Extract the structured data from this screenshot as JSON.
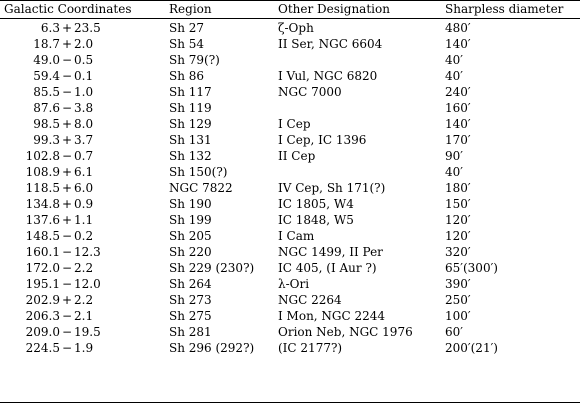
{
  "headers": {
    "coord": "Galactic Coordinates",
    "region": "Region",
    "other": "Other Designation",
    "diameter": "Sharpless diameter"
  },
  "rows": [
    {
      "l": "6.3",
      "op": "+",
      "b": "23.5",
      "region": "Sh 27",
      "other": "ζ-Oph",
      "diameter": "480′"
    },
    {
      "l": "18.7",
      "op": "+",
      "b": "2.0",
      "region": "Sh 54",
      "other": "II Ser, NGC 6604",
      "diameter": "140′"
    },
    {
      "l": "49.0",
      "op": "−",
      "b": "0.5",
      "region": "Sh 79(?)",
      "other": "",
      "diameter": "40′"
    },
    {
      "l": "59.4",
      "op": "−",
      "b": "0.1",
      "region": "Sh 86",
      "other": "I Vul, NGC 6820",
      "diameter": "40′"
    },
    {
      "l": "85.5",
      "op": "−",
      "b": "1.0",
      "region": "Sh 117",
      "other": "NGC 7000",
      "diameter": "240′"
    },
    {
      "l": "87.6",
      "op": "−",
      "b": "3.8",
      "region": "Sh 119",
      "other": "",
      "diameter": "160′"
    },
    {
      "l": "98.5",
      "op": "+",
      "b": "8.0",
      "region": "Sh 129",
      "other": "I Cep",
      "diameter": "140′"
    },
    {
      "l": "99.3",
      "op": "+",
      "b": "3.7",
      "region": "Sh 131",
      "other": "I Cep, IC 1396",
      "diameter": "170′"
    },
    {
      "l": "102.8",
      "op": "−",
      "b": "0.7",
      "region": "Sh 132",
      "other": "II Cep",
      "diameter": "90′"
    },
    {
      "l": "108.9",
      "op": "+",
      "b": "6.1",
      "region": "Sh 150(?)",
      "other": "",
      "diameter": "40′"
    },
    {
      "l": "118.5",
      "op": "+",
      "b": "6.0",
      "region": "NGC 7822",
      "other": "IV Cep, Sh 171(?)",
      "diameter": "180′"
    },
    {
      "l": "134.8",
      "op": "+",
      "b": "0.9",
      "region": "Sh 190",
      "other": "IC 1805, W4",
      "diameter": "150′"
    },
    {
      "l": "137.6",
      "op": "+",
      "b": "1.1",
      "region": "Sh 199",
      "other": "IC 1848, W5",
      "diameter": "120′"
    },
    {
      "l": "148.5",
      "op": "−",
      "b": "0.2",
      "region": "Sh 205",
      "other": "I Cam",
      "diameter": "120′"
    },
    {
      "l": "160.1",
      "op": "−",
      "b": "12.3",
      "region": "Sh 220",
      "other": "NGC 1499, II Per",
      "diameter": "320′"
    },
    {
      "l": "172.0",
      "op": "−",
      "b": "2.2",
      "region": "Sh 229 (230?)",
      "other": "IC 405, (I Aur ?)",
      "diameter": "65′(300′)"
    },
    {
      "l": "195.1",
      "op": "−",
      "b": "12.0",
      "region": "Sh 264",
      "other": "λ-Ori",
      "diameter": "390′"
    },
    {
      "l": "202.9",
      "op": "+",
      "b": "2.2",
      "region": "Sh 273",
      "other": "NGC 2264",
      "diameter": "250′"
    },
    {
      "l": "206.3",
      "op": "−",
      "b": "2.1",
      "region": "Sh 275",
      "other": "I Mon, NGC 2244",
      "diameter": "100′"
    },
    {
      "l": "209.0",
      "op": "−",
      "b": "19.5",
      "region": "Sh 281",
      "other": "Orion Neb, NGC 1976",
      "diameter": "60′"
    },
    {
      "l": "224.5",
      "op": "−",
      "b": "1.9",
      "region": "Sh 296 (292?)",
      "other": "(IC 2177?)",
      "diameter": "200′(21′)"
    }
  ]
}
